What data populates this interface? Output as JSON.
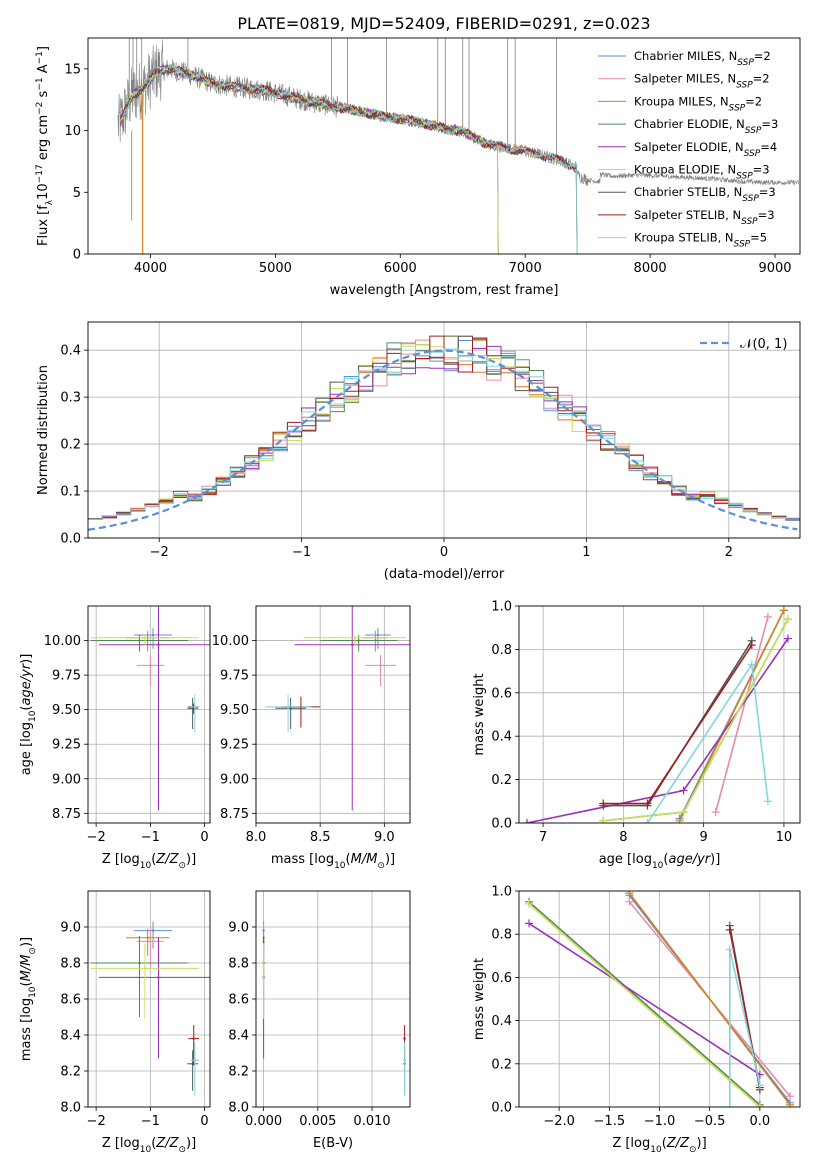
{
  "figure_title": "PLATE=0819, MJD=52409, FIBERID=0291, z=0.023",
  "colors": {
    "observed": "#808080",
    "Chabrier MILES": "#5b8fd6",
    "Salpeter MILES": "#e88aa8",
    "Kroupa MILES": "#c9861a",
    "Chabrier ELODIE": "#4f8a4f",
    "Salpeter ELODIE": "#9b30b8",
    "Kroupa ELODIE": "#c8e05a",
    "Chabrier STELIB": "#555555",
    "Salpeter STELIB": "#a51c1c",
    "Kroupa STELIB": "#7fd7dd",
    "extra_orange": "#e8722a",
    "gaussian": "#5b8fd6",
    "grid": "#b0b0b0"
  },
  "legend_models": [
    {
      "name": "Chabrier MILES",
      "sub": "SSP",
      "n": "2"
    },
    {
      "name": "Salpeter MILES",
      "sub": "SSP",
      "n": "2"
    },
    {
      "name": "Kroupa MILES",
      "sub": "SSP",
      "n": "2"
    },
    {
      "name": "Chabrier ELODIE",
      "sub": "SSP",
      "n": "3"
    },
    {
      "name": "Salpeter ELODIE",
      "sub": "SSP",
      "n": "4"
    },
    {
      "name": "Kroupa ELODIE",
      "sub": "SSP",
      "n": "3"
    },
    {
      "name": "Chabrier STELIB",
      "sub": "SSP",
      "n": "3"
    },
    {
      "name": "Salpeter STELIB",
      "sub": "SSP",
      "n": "3"
    },
    {
      "name": "Kroupa STELIB",
      "sub": "SSP",
      "n": "5"
    }
  ],
  "chart_data": [
    {
      "id": "spectrum",
      "type": "line",
      "xlabel": "wavelength [Angstrom, rest frame]",
      "ylabel": "Flux [f_λ 10^-17 erg cm^-2 s^-1 A^-1]",
      "xlim": [
        3500,
        9200
      ],
      "ylim": [
        0,
        17.5
      ],
      "xticks": [
        4000,
        5000,
        6000,
        7000,
        8000,
        9000
      ],
      "yticks": [
        0,
        5,
        10,
        15
      ],
      "grid": false,
      "legend_position": "top-right",
      "observed_continuum": {
        "x": [
          3750,
          3850,
          3950,
          4050,
          4150,
          4300,
          4500,
          4700,
          4900,
          5100,
          5300,
          5500,
          5700,
          5900,
          6100,
          6300,
          6500,
          6700,
          6900,
          7100,
          7300,
          7500,
          7700,
          7900,
          8100,
          8300,
          8500,
          8700,
          8900,
          9100
        ],
        "y": [
          10.5,
          12.8,
          13.5,
          14.8,
          15.0,
          14.6,
          13.8,
          13.5,
          13.3,
          12.8,
          12.3,
          11.9,
          11.5,
          11.1,
          10.8,
          10.3,
          9.9,
          8.9,
          8.5,
          8.1,
          7.5,
          6.6,
          6.3,
          6.4,
          6.3,
          6.2,
          6.1,
          5.9,
          5.8,
          5.8
        ]
      }
    },
    {
      "id": "residuals",
      "type": "line",
      "xlabel": "(data-model)/error",
      "ylabel": "Normed distribution",
      "xlim": [
        -2.5,
        2.5
      ],
      "ylim": [
        0,
        0.46
      ],
      "xticks": [
        -2,
        -1,
        0,
        1,
        2
      ],
      "yticks": [
        0.0,
        0.1,
        0.2,
        0.3,
        0.4
      ],
      "grid": true,
      "legend_position": "top-right",
      "gaussian_label": "𝒩(0, 1)"
    },
    {
      "id": "age_vs_Z",
      "type": "scatter",
      "xlabel": "Z [log10(Z/Z☉)]",
      "ylabel": "age  [log10(age/yr)]",
      "xlim": [
        -2.15,
        0.1
      ],
      "ylim": [
        8.68,
        10.25
      ],
      "xticks": [
        -2,
        -1,
        0
      ],
      "yticks": [
        8.75,
        9.0,
        9.25,
        9.5,
        9.75,
        10.0
      ],
      "grid": true,
      "points": [
        {
          "model": "Chabrier MILES",
          "x": -0.95,
          "y": 10.04,
          "xerr": 0.35,
          "yerr": 0.1
        },
        {
          "model": "Salpeter MILES",
          "x": -1.0,
          "y": 9.82,
          "xerr": 0.25,
          "yerr": 0.15
        },
        {
          "model": "Kroupa MILES",
          "x": -1.05,
          "y": 10.02,
          "xerr": 0.4,
          "yerr": 0.1
        },
        {
          "model": "Chabrier ELODIE",
          "x": -1.2,
          "y": 10.0,
          "xerr": 0.9,
          "yerr": 0.08
        },
        {
          "model": "Salpeter ELODIE",
          "x": -0.85,
          "y": 9.97,
          "xerr": 1.1,
          "yerr": 1.2
        },
        {
          "model": "Kroupa ELODIE",
          "x": -1.1,
          "y": 10.02,
          "xerr": 1.0,
          "yerr": 0.05
        },
        {
          "model": "Chabrier STELIB",
          "x": -0.22,
          "y": 9.51,
          "xerr": 0.1,
          "yerr": 0.15
        },
        {
          "model": "Salpeter STELIB",
          "x": -0.2,
          "y": 9.52,
          "xerr": 0.1,
          "yerr": 0.05
        },
        {
          "model": "Kroupa STELIB",
          "x": -0.18,
          "y": 9.52,
          "xerr": 0.08,
          "yerr": 0.18
        }
      ]
    },
    {
      "id": "age_vs_mass",
      "type": "scatter",
      "xlabel": "mass [log10(M/M☉)]",
      "ylabel": "",
      "xlim": [
        8.0,
        9.2
      ],
      "ylim": [
        8.68,
        10.25
      ],
      "xticks": [
        8.0,
        8.5,
        9.0
      ],
      "yticks": [
        8.75,
        9.0,
        9.25,
        9.5,
        9.75,
        10.0
      ],
      "grid": true,
      "points": [
        {
          "model": "Chabrier MILES",
          "x": 8.95,
          "y": 10.04,
          "xerr": 0.1,
          "yerr": 0.1
        },
        {
          "model": "Salpeter MILES",
          "x": 8.97,
          "y": 9.82,
          "xerr": 0.12,
          "yerr": 0.15
        },
        {
          "model": "Kroupa MILES",
          "x": 8.93,
          "y": 10.02,
          "xerr": 0.1,
          "yerr": 0.1
        },
        {
          "model": "Chabrier ELODIE",
          "x": 8.8,
          "y": 10.0,
          "xerr": 0.3,
          "yerr": 0.08
        },
        {
          "model": "Salpeter ELODIE",
          "x": 8.75,
          "y": 9.97,
          "xerr": 0.45,
          "yerr": 1.2
        },
        {
          "model": "Kroupa ELODIE",
          "x": 8.77,
          "y": 10.02,
          "xerr": 0.4,
          "yerr": 0.05
        },
        {
          "model": "Chabrier STELIB",
          "x": 8.27,
          "y": 9.51,
          "xerr": 0.12,
          "yerr": 0.15
        },
        {
          "model": "Salpeter STELIB",
          "x": 8.35,
          "y": 9.52,
          "xerr": 0.15,
          "yerr": 0.15
        },
        {
          "model": "Kroupa STELIB",
          "x": 8.25,
          "y": 9.52,
          "xerr": 0.18,
          "yerr": 0.18
        }
      ]
    },
    {
      "id": "weight_vs_age",
      "type": "line",
      "xlabel": "age  [log10(age/yr)]",
      "ylabel": "mass weight",
      "xlim": [
        6.7,
        10.2
      ],
      "ylim": [
        0,
        1.0
      ],
      "xticks": [
        7,
        8,
        9,
        10
      ],
      "yticks": [
        0.0,
        0.2,
        0.4,
        0.6,
        0.8,
        1.0
      ],
      "grid": true,
      "series": [
        {
          "model": "Chabrier MILES",
          "x": [
            8.7,
            10.0
          ],
          "y": [
            0.02,
            0.98
          ]
        },
        {
          "model": "Salpeter MILES",
          "x": [
            9.15,
            9.8
          ],
          "y": [
            0.05,
            0.95
          ]
        },
        {
          "model": "Kroupa MILES",
          "x": [
            8.7,
            10.0
          ],
          "y": [
            0.01,
            0.98
          ]
        },
        {
          "model": "Chabrier ELODIE",
          "x": [
            7.75,
            8.75,
            10.05
          ],
          "y": [
            0.01,
            0.05,
            0.94
          ]
        },
        {
          "model": "Salpeter ELODIE",
          "x": [
            6.8,
            8.75,
            10.05
          ],
          "y": [
            0.0,
            0.15,
            0.85
          ]
        },
        {
          "model": "Kroupa ELODIE",
          "x": [
            7.75,
            8.75,
            10.05
          ],
          "y": [
            0.01,
            0.05,
            0.94
          ]
        },
        {
          "model": "Chabrier STELIB",
          "x": [
            7.75,
            8.3,
            9.6
          ],
          "y": [
            0.08,
            0.08,
            0.84
          ]
        },
        {
          "model": "Salpeter STELIB",
          "x": [
            7.75,
            8.3,
            9.6
          ],
          "y": [
            0.09,
            0.09,
            0.82
          ]
        },
        {
          "model": "Kroupa STELIB",
          "x": [
            8.3,
            9.6,
            9.8
          ],
          "y": [
            0.0,
            0.73,
            0.1
          ]
        }
      ]
    },
    {
      "id": "mass_vs_Z",
      "type": "scatter",
      "xlabel": "Z [log10(Z/Z☉)]",
      "ylabel": "mass [log10(M/M☉)]",
      "xlim": [
        -2.15,
        0.1
      ],
      "ylim": [
        8.0,
        9.2
      ],
      "xticks": [
        -2,
        -1,
        0
      ],
      "yticks": [
        8.0,
        8.2,
        8.4,
        8.6,
        8.8,
        9.0
      ],
      "grid": true,
      "points": [
        {
          "model": "Chabrier MILES",
          "x": -0.95,
          "y": 8.98,
          "xerr": 0.35,
          "yerr": 0.1
        },
        {
          "model": "Salpeter MILES",
          "x": -1.0,
          "y": 8.92,
          "xerr": 0.25,
          "yerr": 0.15
        },
        {
          "model": "Kroupa MILES",
          "x": -1.05,
          "y": 8.94,
          "xerr": 0.4,
          "yerr": 0.1
        },
        {
          "model": "Chabrier ELODIE",
          "x": -1.2,
          "y": 8.8,
          "xerr": 0.9,
          "yerr": 0.3
        },
        {
          "model": "Salpeter ELODIE",
          "x": -0.85,
          "y": 8.72,
          "xerr": 1.1,
          "yerr": 0.45
        },
        {
          "model": "Kroupa ELODIE",
          "x": -1.1,
          "y": 8.77,
          "xerr": 1.0,
          "yerr": 0.28
        },
        {
          "model": "Chabrier STELIB",
          "x": -0.22,
          "y": 8.24,
          "xerr": 0.1,
          "yerr": 0.15
        },
        {
          "model": "Salpeter STELIB",
          "x": -0.2,
          "y": 8.38,
          "xerr": 0.1,
          "yerr": 0.15
        },
        {
          "model": "Kroupa STELIB",
          "x": -0.18,
          "y": 8.26,
          "xerr": 0.08,
          "yerr": 0.2
        }
      ]
    },
    {
      "id": "mass_vs_EBV",
      "type": "scatter",
      "xlabel": "E(B-V)",
      "ylabel": "",
      "xlim": [
        -0.0007,
        0.0135
      ],
      "ylim": [
        8.0,
        9.2
      ],
      "xticks": [
        0.0,
        0.005,
        0.01
      ],
      "xticklabels": [
        "0.000",
        "0.005",
        "0.010"
      ],
      "yticks": [
        8.0,
        8.2,
        8.4,
        8.6,
        8.8,
        9.0
      ],
      "grid": true,
      "points": [
        {
          "model": "Chabrier MILES",
          "x": 0.0,
          "y": 8.98,
          "yerr": 0.1
        },
        {
          "model": "Salpeter MILES",
          "x": 0.0,
          "y": 8.92,
          "yerr": 0.2
        },
        {
          "model": "Kroupa MILES",
          "x": 0.0,
          "y": 8.94,
          "yerr": 0.1
        },
        {
          "model": "Chabrier ELODIE",
          "x": 0.0,
          "y": 8.8,
          "yerr": 0.3
        },
        {
          "model": "Salpeter ELODIE",
          "x": 0.0,
          "y": 8.72,
          "yerr": 0.45
        },
        {
          "model": "Kroupa ELODIE",
          "x": 0.0,
          "y": 8.77,
          "yerr": 0.28
        },
        {
          "model": "Chabrier STELIB",
          "x": 0.013,
          "y": 8.24,
          "yerr": 0.15
        },
        {
          "model": "Salpeter STELIB",
          "x": 0.013,
          "y": 8.38,
          "yerr": 0.15
        },
        {
          "model": "Kroupa STELIB",
          "x": 0.013,
          "y": 8.26,
          "yerr": 0.2
        }
      ]
    },
    {
      "id": "weight_vs_Z",
      "type": "line",
      "xlabel": "Z [log10(Z/Z☉)]",
      "ylabel": "mass weight",
      "xlim": [
        -2.4,
        0.4
      ],
      "ylim": [
        0,
        1.0
      ],
      "xticks": [
        -2.0,
        -1.5,
        -1.0,
        -0.5,
        0.0
      ],
      "yticks": [
        0.0,
        0.2,
        0.4,
        0.6,
        0.8,
        1.0
      ],
      "grid": true,
      "series": [
        {
          "model": "Chabrier MILES",
          "x": [
            -1.3,
            0.3
          ],
          "y": [
            0.98,
            0.02
          ]
        },
        {
          "model": "Salpeter MILES",
          "x": [
            -1.3,
            0.3
          ],
          "y": [
            0.95,
            0.05
          ]
        },
        {
          "model": "Kroupa MILES",
          "x": [
            -1.3,
            0.3
          ],
          "y": [
            0.99,
            0.01
          ]
        },
        {
          "model": "Chabrier ELODIE",
          "x": [
            -2.3,
            0.0
          ],
          "y": [
            0.95,
            0.01
          ]
        },
        {
          "model": "Salpeter ELODIE",
          "x": [
            -2.3,
            0.0
          ],
          "y": [
            0.85,
            0.15
          ]
        },
        {
          "model": "Kroupa ELODIE",
          "x": [
            -2.3,
            0.0
          ],
          "y": [
            0.94,
            0.0
          ]
        },
        {
          "model": "Chabrier STELIB",
          "x": [
            -0.3,
            0.0
          ],
          "y": [
            0.84,
            0.08
          ]
        },
        {
          "model": "Salpeter STELIB",
          "x": [
            -0.3,
            0.0
          ],
          "y": [
            0.82,
            0.09
          ]
        },
        {
          "model": "Kroupa STELIB",
          "x": [
            -0.3,
            -0.3,
            0.0
          ],
          "y": [
            0.0,
            0.73,
            0.1
          ]
        }
      ]
    }
  ]
}
